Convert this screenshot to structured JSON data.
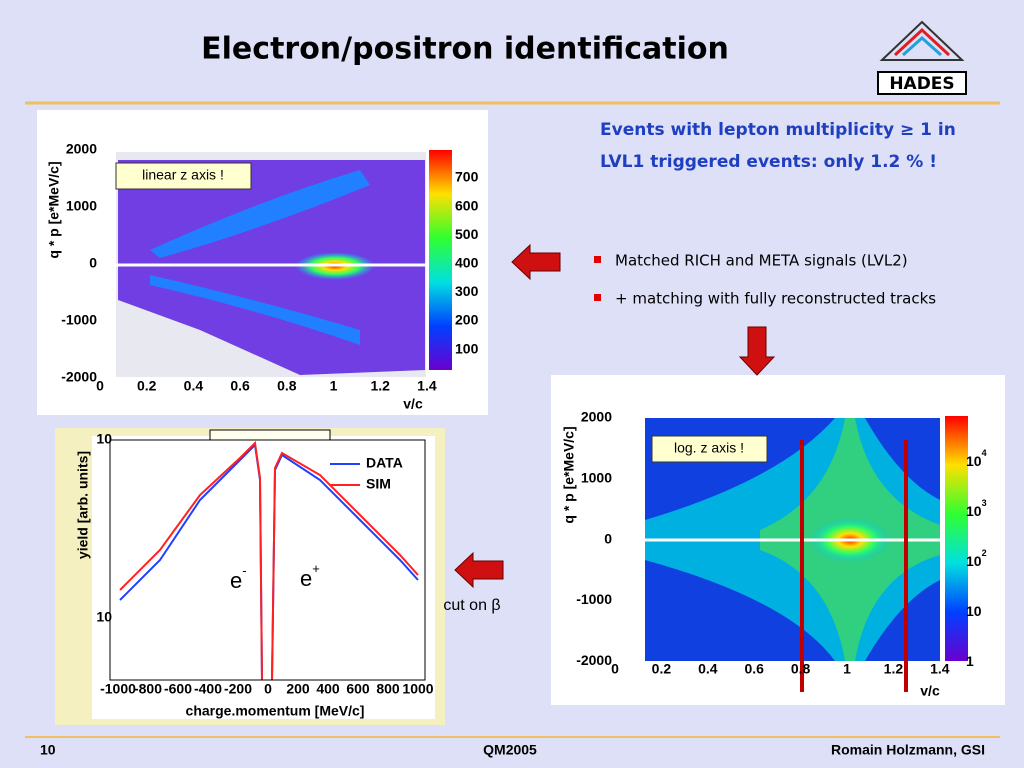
{
  "header": {
    "title": "Electron/positron identification",
    "logo": "HADES"
  },
  "summary": [
    "Events with lepton multiplicity ≥ 1 in",
    "LVL1 triggered events: only 1.2 % !"
  ],
  "bullets": [
    "Matched RICH and META signals  (LVL2)",
    "+ matching with fully reconstructed tracks"
  ],
  "plot_linear": {
    "note": "linear z axis !",
    "y_title": "q * p [e*MeV/c]",
    "x_title": "v/c",
    "yticks": [
      "2000",
      "1000",
      "0",
      "-1000",
      "-2000"
    ],
    "xticks": [
      "0",
      "0.2",
      "0.4",
      "0.6",
      "0.8",
      "1",
      "1.2",
      "1.4"
    ],
    "zticks": [
      "700",
      "600",
      "500",
      "400",
      "300",
      "200",
      "100"
    ]
  },
  "plot_log": {
    "note": "log. z axis !",
    "y_title": "q * p [e*MeV/c]",
    "x_title": "v/c",
    "yticks": [
      "2000",
      "1000",
      "0",
      "-1000",
      "-2000"
    ],
    "xticks": [
      "0",
      "0.2",
      "0.4",
      "0.6",
      "0.8",
      "1",
      "1.2",
      "1.4"
    ],
    "zticks": [
      {
        "base": "10",
        "sup": "4"
      },
      {
        "base": "10",
        "sup": "3"
      },
      {
        "base": "10",
        "sup": "2"
      },
      {
        "base": "10"
      },
      {
        "base": "1"
      }
    ]
  },
  "plot_yield": {
    "y_title": "yield [arb. units]",
    "x_title": "charge.momentum [MeV/c]",
    "yticks": [
      "10",
      "10"
    ],
    "xticks": [
      "-1000",
      "-800",
      "-600",
      "-400",
      "-200",
      "0",
      "200",
      "400",
      "600",
      "800",
      "1000"
    ],
    "legend": [
      "DATA",
      "SIM"
    ],
    "electron": "e",
    "electron_sup": "-",
    "positron": "e",
    "positron_sup": "+"
  },
  "cut_label": "cut on β",
  "footer": {
    "page": "10",
    "event": "QM2005",
    "author": "Romain Holzmann, GSI"
  }
}
